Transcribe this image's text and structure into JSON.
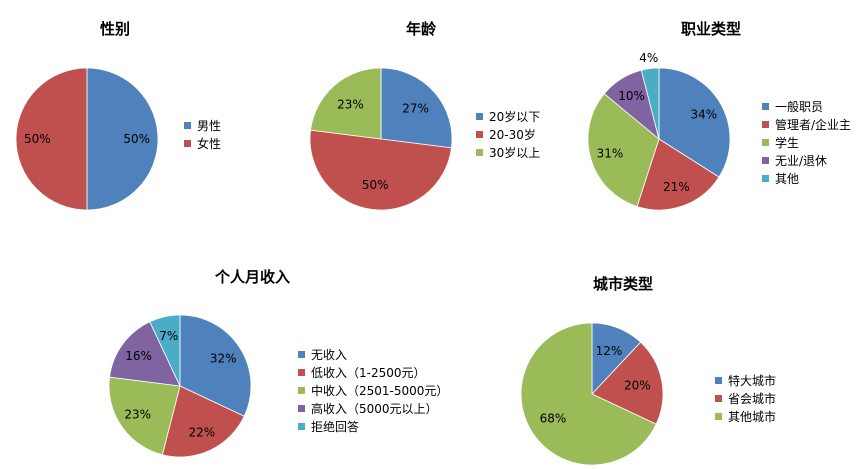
{
  "colors": {
    "blue": "#4F81BD",
    "red": "#C0504D",
    "green": "#9BBB59",
    "purple": "#8064A2",
    "cyan": "#4BACC6"
  },
  "chart_data": [
    {
      "type": "pie",
      "title": "性别",
      "categories": [
        "男性",
        "女性"
      ],
      "values": [
        50,
        50
      ],
      "labels": [
        "50%",
        "50%"
      ],
      "colors": [
        "#4F81BD",
        "#C0504D"
      ],
      "legend": "right"
    },
    {
      "type": "pie",
      "title": "年龄",
      "categories": [
        "20岁以下",
        "20-30岁",
        "30岁以上"
      ],
      "values": [
        27,
        50,
        23
      ],
      "labels": [
        "27%",
        "50%",
        "23%"
      ],
      "colors": [
        "#4F81BD",
        "#C0504D",
        "#9BBB59"
      ],
      "legend": "right"
    },
    {
      "type": "pie",
      "title": "职业类型",
      "categories": [
        "一般职员",
        "管理者/企业主",
        "学生",
        "无业/退休",
        "其他"
      ],
      "values": [
        34,
        21,
        31,
        10,
        4
      ],
      "labels": [
        "34%",
        "21%",
        "31%",
        "10%",
        "4%"
      ],
      "colors": [
        "#4F81BD",
        "#C0504D",
        "#9BBB59",
        "#8064A2",
        "#4BACC6"
      ],
      "legend": "right"
    },
    {
      "type": "pie",
      "title": "个人月收入",
      "categories": [
        "无收入",
        "低收入（1-2500元）",
        "中收入（2501-5000元）",
        "高收入（5000元以上）",
        "拒绝回答"
      ],
      "values": [
        32,
        22,
        23,
        16,
        7
      ],
      "labels": [
        "32%",
        "22%",
        "23%",
        "16%",
        "7%"
      ],
      "colors": [
        "#4F81BD",
        "#C0504D",
        "#9BBB59",
        "#8064A2",
        "#4BACC6"
      ],
      "legend": "right"
    },
    {
      "type": "pie",
      "title": "城市类型",
      "categories": [
        "特大城市",
        "省会城市",
        "其他城市"
      ],
      "values": [
        12,
        20,
        68
      ],
      "labels": [
        "12%",
        "20%",
        "68%"
      ],
      "colors": [
        "#4F81BD",
        "#C0504D",
        "#9BBB59"
      ],
      "legend": "right"
    }
  ]
}
